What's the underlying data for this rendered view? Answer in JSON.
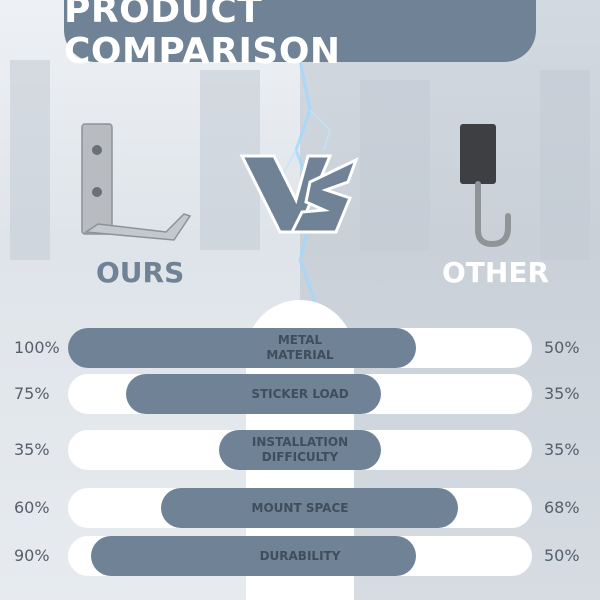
{
  "banner": {
    "title": "PRODUCT COMPARISON"
  },
  "vs_logo": {
    "label": "VS"
  },
  "products": {
    "ours": "OURS",
    "other": "OTHER"
  },
  "rows": [
    {
      "metric": "METAL\nMATERIAL",
      "ours_label": "100%",
      "other_label": "50%",
      "ours": 100,
      "other": 50
    },
    {
      "metric": "STICKER LOAD",
      "ours_label": "75%",
      "other_label": "35%",
      "ours": 75,
      "other": 35
    },
    {
      "metric": "INSTALLATION\nDIFFICULTY",
      "ours_label": "35%",
      "other_label": "35%",
      "ours": 35,
      "other": 35
    },
    {
      "metric": "MOUNT SPACE",
      "ours_label": "60%",
      "other_label": "68%",
      "ours": 60,
      "other": 68
    },
    {
      "metric": "DURABILITY",
      "ours_label": "90%",
      "other_label": "50%",
      "ours": 90,
      "other": 50
    }
  ],
  "colors": {
    "accent": "#6f8296",
    "track": "#ffffff",
    "text": "#555f6a"
  }
}
